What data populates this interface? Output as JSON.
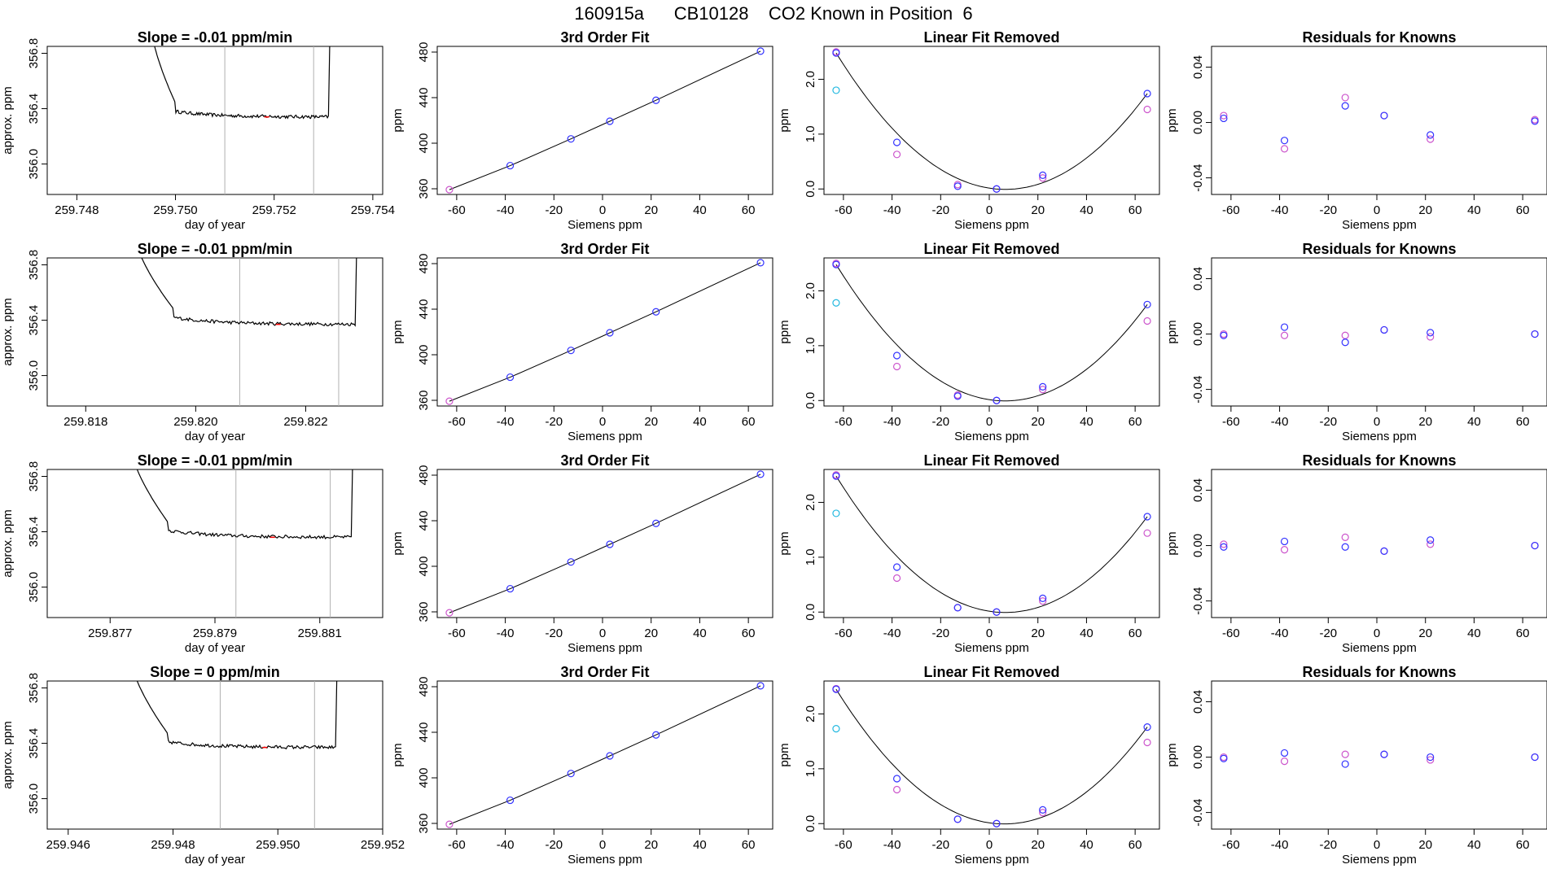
{
  "figure": {
    "title": "160915a      CB10128    CO2 Known in Position  6"
  },
  "colors": {
    "trace": "#000000",
    "gridline": "#b0b0b0",
    "marker_red": "#ff0000",
    "point_blue": "#3232ff",
    "point_magenta": "#cc55cc",
    "point_cyan": "#22b8e0",
    "axes": "#000000"
  },
  "chart_data": [
    {
      "type": "line",
      "row": 0,
      "col": 0,
      "title": "Slope =  -0.01  ppm/min",
      "xlabel": "day of year",
      "ylabel": "approx. ppm",
      "xlim": [
        259.7474,
        259.7542
      ],
      "ylim": [
        355.78,
        356.85
      ],
      "xticks": [
        259.748,
        259.75,
        259.752,
        259.754
      ],
      "xtick_labels": [
        "259.748",
        "259.750",
        "259.752",
        "259.754"
      ],
      "yticks": [
        356.0,
        356.4,
        356.8
      ],
      "ytick_labels": [
        "356.0",
        "356.4",
        "356.8"
      ],
      "start": 259.7495,
      "drop_end": 259.75,
      "end": 259.7531,
      "plateau": 356.34,
      "settle": 356.38,
      "noise": 0.012,
      "window": [
        259.751,
        259.7528
      ],
      "marker": 259.75185
    },
    {
      "type": "line",
      "row": 0,
      "col": 1,
      "title": "3rd Order Fit",
      "xlabel": "Siemens ppm",
      "ylabel": "ppm",
      "xlim": [
        -68,
        70
      ],
      "ylim": [
        355,
        485
      ],
      "xticks": [
        -60,
        -40,
        -20,
        0,
        20,
        40,
        60
      ],
      "yticks": [
        360,
        400,
        440,
        480
      ],
      "x": [
        -63,
        -38,
        -13,
        3,
        22,
        65
      ],
      "y": [
        359.2,
        380.3,
        403.8,
        419.3,
        437.7,
        480.8
      ]
    },
    {
      "type": "line",
      "row": 0,
      "col": 2,
      "title": "Linear Fit Removed",
      "xlabel": "Siemens ppm",
      "ylabel": "ppm",
      "xlim": [
        -68,
        70
      ],
      "ylim": [
        -0.1,
        2.6
      ],
      "xticks": [
        -60,
        -40,
        -20,
        0,
        20,
        40,
        60
      ],
      "xtick_labels": [
        "-60",
        "-40",
        "-20",
        "0",
        "20",
        "40",
        "60"
      ],
      "yticks": [
        0.0,
        1.0,
        2.0
      ],
      "ytick_labels": [
        "0.0",
        "1.0",
        "2.0"
      ],
      "x": [
        -63,
        -38,
        -13,
        3,
        22,
        65
      ],
      "y_blue": [
        2.48,
        0.85,
        0.05,
        0.0,
        0.25,
        1.74
      ],
      "y_magenta": [
        2.5,
        0.63,
        0.08,
        0.0,
        0.2,
        1.45
      ],
      "cyan_point": [
        -63,
        1.8
      ]
    },
    {
      "type": "scatter",
      "row": 0,
      "col": 3,
      "title": "Residuals for Knowns",
      "xlabel": "Siemens ppm",
      "ylabel": "ppm",
      "xlim": [
        -68,
        70
      ],
      "ylim": [
        -0.052,
        0.055
      ],
      "xticks": [
        -60,
        -40,
        -20,
        0,
        20,
        40,
        60
      ],
      "yticks": [
        -0.04,
        0.0,
        0.04
      ],
      "ytick_labels": [
        "-0.04",
        "0.00",
        "0.04"
      ],
      "x": [
        -63,
        -38,
        -13,
        3,
        22,
        65
      ],
      "y_blue": [
        0.003,
        -0.013,
        0.012,
        0.005,
        -0.009,
        0.001
      ],
      "y_magenta": [
        0.005,
        -0.019,
        0.018,
        0.005,
        -0.012,
        0.002
      ]
    },
    {
      "type": "line",
      "row": 1,
      "col": 0,
      "title": "Slope =  -0.01  ppm/min",
      "xlabel": "day of year",
      "ylabel": "approx. ppm",
      "xlim": [
        259.8173,
        259.8234
      ],
      "ylim": [
        355.78,
        356.85
      ],
      "xticks": [
        259.818,
        259.82,
        259.822
      ],
      "xtick_labels": [
        "259.818",
        "259.820",
        "259.822"
      ],
      "yticks": [
        356.0,
        356.4,
        356.8
      ],
      "ytick_labels": [
        "356.0",
        "356.4",
        "356.8"
      ],
      "start": 259.8189,
      "drop_end": 259.8196,
      "end": 259.8229,
      "plateau": 356.37,
      "settle": 356.42,
      "noise": 0.012,
      "window": [
        259.8208,
        259.8226
      ],
      "marker": 259.8215
    },
    {
      "type": "line",
      "row": 1,
      "col": 1,
      "title": "3rd Order Fit",
      "xlabel": "Siemens ppm",
      "ylabel": "ppm",
      "xlim": [
        -68,
        70
      ],
      "ylim": [
        355,
        485
      ],
      "xticks": [
        -60,
        -40,
        -20,
        0,
        20,
        40,
        60
      ],
      "yticks": [
        360,
        400,
        440,
        480
      ],
      "x": [
        -63,
        -38,
        -13,
        3,
        22,
        65
      ],
      "y": [
        359.2,
        380.3,
        403.8,
        419.3,
        437.7,
        480.8
      ]
    },
    {
      "type": "line",
      "row": 1,
      "col": 2,
      "title": "Linear Fit Removed",
      "xlabel": "Siemens ppm",
      "ylabel": "ppm",
      "xlim": [
        -68,
        70
      ],
      "ylim": [
        -0.1,
        2.6
      ],
      "xticks": [
        -60,
        -40,
        -20,
        0,
        20,
        40,
        60
      ],
      "xtick_labels": [
        "-60",
        "-40",
        "-20",
        "0",
        "20",
        "40",
        "60"
      ],
      "yticks": [
        0.0,
        1.0,
        2.0
      ],
      "ytick_labels": [
        "0.0",
        "1.0",
        "2.0"
      ],
      "x": [
        -63,
        -38,
        -13,
        3,
        22,
        65
      ],
      "y_blue": [
        2.48,
        0.82,
        0.08,
        0.0,
        0.25,
        1.75
      ],
      "y_magenta": [
        2.5,
        0.62,
        0.1,
        0.0,
        0.2,
        1.45
      ],
      "cyan_point": [
        -63,
        1.78
      ]
    },
    {
      "type": "scatter",
      "row": 1,
      "col": 3,
      "title": "Residuals for Knowns",
      "xlabel": "Siemens ppm",
      "ylabel": "ppm",
      "xlim": [
        -68,
        70
      ],
      "ylim": [
        -0.052,
        0.055
      ],
      "xticks": [
        -60,
        -40,
        -20,
        0,
        20,
        40,
        60
      ],
      "yticks": [
        -0.04,
        0.0,
        0.04
      ],
      "ytick_labels": [
        "-0.04",
        "0.00",
        "0.04"
      ],
      "x": [
        -63,
        -38,
        -13,
        3,
        22,
        65
      ],
      "y_blue": [
        -0.001,
        0.005,
        -0.006,
        0.003,
        0.001,
        0.0
      ],
      "y_magenta": [
        0.0,
        -0.001,
        -0.001,
        0.003,
        -0.002,
        0.0
      ]
    },
    {
      "type": "line",
      "row": 2,
      "col": 0,
      "title": "Slope =  -0.01  ppm/min",
      "xlabel": "day of year",
      "ylabel": "approx. ppm",
      "xlim": [
        259.8758,
        259.8822
      ],
      "ylim": [
        355.78,
        356.85
      ],
      "xticks": [
        259.877,
        259.879,
        259.881
      ],
      "xtick_labels": [
        "259.877",
        "259.879",
        "259.881"
      ],
      "yticks": [
        356.0,
        356.4,
        356.8
      ],
      "ytick_labels": [
        "356.0",
        "356.4",
        "356.8"
      ],
      "start": 259.8774,
      "drop_end": 259.8781,
      "end": 259.8816,
      "plateau": 356.36,
      "settle": 356.41,
      "noise": 0.012,
      "window": [
        259.8794,
        259.8812
      ],
      "marker": 259.8801
    },
    {
      "type": "line",
      "row": 2,
      "col": 1,
      "title": "3rd Order Fit",
      "xlabel": "Siemens ppm",
      "ylabel": "ppm",
      "xlim": [
        -68,
        70
      ],
      "ylim": [
        355,
        485
      ],
      "xticks": [
        -60,
        -40,
        -20,
        0,
        20,
        40,
        60
      ],
      "yticks": [
        360,
        400,
        440,
        480
      ],
      "x": [
        -63,
        -38,
        -13,
        3,
        22,
        65
      ],
      "y": [
        359.2,
        380.3,
        403.8,
        419.3,
        437.7,
        480.8
      ]
    },
    {
      "type": "line",
      "row": 2,
      "col": 2,
      "title": "Linear Fit Removed",
      "xlabel": "Siemens ppm",
      "ylabel": "ppm",
      "xlim": [
        -68,
        70
      ],
      "ylim": [
        -0.1,
        2.6
      ],
      "xticks": [
        -60,
        -40,
        -20,
        0,
        20,
        40,
        60
      ],
      "xtick_labels": [
        "-60",
        "-40",
        "-20",
        "0",
        "20",
        "40",
        "60"
      ],
      "yticks": [
        0.0,
        1.0,
        2.0
      ],
      "ytick_labels": [
        "0.0",
        "1.0",
        "2.0"
      ],
      "x": [
        -63,
        -38,
        -13,
        3,
        22,
        65
      ],
      "y_blue": [
        2.48,
        0.82,
        0.08,
        0.0,
        0.25,
        1.74
      ],
      "y_magenta": [
        2.5,
        0.62,
        0.08,
        0.0,
        0.2,
        1.44
      ],
      "cyan_point": [
        -63,
        1.8
      ]
    },
    {
      "type": "scatter",
      "row": 2,
      "col": 3,
      "title": "Residuals for Knowns",
      "xlabel": "Siemens ppm",
      "ylabel": "ppm",
      "xlim": [
        -68,
        70
      ],
      "ylim": [
        -0.052,
        0.055
      ],
      "xticks": [
        -60,
        -40,
        -20,
        0,
        20,
        40,
        60
      ],
      "yticks": [
        -0.04,
        0.0,
        0.04
      ],
      "ytick_labels": [
        "-0.04",
        "0.00",
        "0.04"
      ],
      "x": [
        -63,
        -38,
        -13,
        3,
        22,
        65
      ],
      "y_blue": [
        -0.001,
        0.003,
        -0.001,
        -0.004,
        0.004,
        0.0
      ],
      "y_magenta": [
        0.001,
        -0.003,
        0.006,
        -0.004,
        0.001,
        0.0
      ]
    },
    {
      "type": "line",
      "row": 3,
      "col": 0,
      "title": "Slope =  0  ppm/min",
      "xlabel": "day of year",
      "ylabel": "approx. ppm",
      "xlim": [
        259.9456,
        259.952
      ],
      "ylim": [
        355.78,
        356.85
      ],
      "xticks": [
        259.946,
        259.948,
        259.95,
        259.952
      ],
      "xtick_labels": [
        "259.946",
        "259.948",
        "259.950",
        "259.952"
      ],
      "yticks": [
        356.0,
        356.4,
        356.8
      ],
      "ytick_labels": [
        "356.0",
        "356.4",
        "356.8"
      ],
      "start": 259.9472,
      "drop_end": 259.9479,
      "end": 259.9511,
      "plateau": 356.37,
      "settle": 356.41,
      "noise": 0.012,
      "window": [
        259.9489,
        259.9507
      ],
      "marker": 259.94975
    },
    {
      "type": "line",
      "row": 3,
      "col": 1,
      "title": "3rd Order Fit",
      "xlabel": "Siemens ppm",
      "ylabel": "ppm",
      "xlim": [
        -68,
        70
      ],
      "ylim": [
        355,
        485
      ],
      "xticks": [
        -60,
        -40,
        -20,
        0,
        20,
        40,
        60
      ],
      "yticks": [
        360,
        400,
        440,
        480
      ],
      "x": [
        -63,
        -38,
        -13,
        3,
        22,
        65
      ],
      "y": [
        359.2,
        380.3,
        403.8,
        419.3,
        437.7,
        480.8
      ]
    },
    {
      "type": "line",
      "row": 3,
      "col": 2,
      "title": "Linear Fit Removed",
      "xlabel": "Siemens ppm",
      "ylabel": "ppm",
      "xlim": [
        -68,
        70
      ],
      "ylim": [
        -0.1,
        2.6
      ],
      "xticks": [
        -60,
        -40,
        -20,
        0,
        20,
        40,
        60
      ],
      "xtick_labels": [
        "-60",
        "-40",
        "-20",
        "0",
        "20",
        "40",
        "60"
      ],
      "yticks": [
        0.0,
        1.0,
        2.0
      ],
      "ytick_labels": [
        "0.0",
        "1.0",
        "2.0"
      ],
      "x": [
        -63,
        -38,
        -13,
        3,
        22,
        65
      ],
      "y_blue": [
        2.45,
        0.82,
        0.08,
        0.0,
        0.25,
        1.76
      ],
      "y_magenta": [
        2.46,
        0.62,
        0.08,
        0.0,
        0.2,
        1.48
      ],
      "cyan_point": [
        -63,
        1.73
      ]
    },
    {
      "type": "scatter",
      "row": 3,
      "col": 3,
      "title": "Residuals for Knowns",
      "xlabel": "Siemens ppm",
      "ylabel": "ppm",
      "xlim": [
        -68,
        70
      ],
      "ylim": [
        -0.052,
        0.055
      ],
      "xticks": [
        -60,
        -40,
        -20,
        0,
        20,
        40,
        60
      ],
      "yticks": [
        -0.04,
        0.0,
        0.04
      ],
      "ytick_labels": [
        "-0.04",
        "0.00",
        "0.04"
      ],
      "x": [
        -63,
        -38,
        -13,
        3,
        22,
        65
      ],
      "y_blue": [
        -0.001,
        0.003,
        -0.005,
        0.002,
        0.0,
        0.0
      ],
      "y_magenta": [
        0.0,
        -0.003,
        0.002,
        0.002,
        -0.002,
        0.0
      ]
    }
  ]
}
